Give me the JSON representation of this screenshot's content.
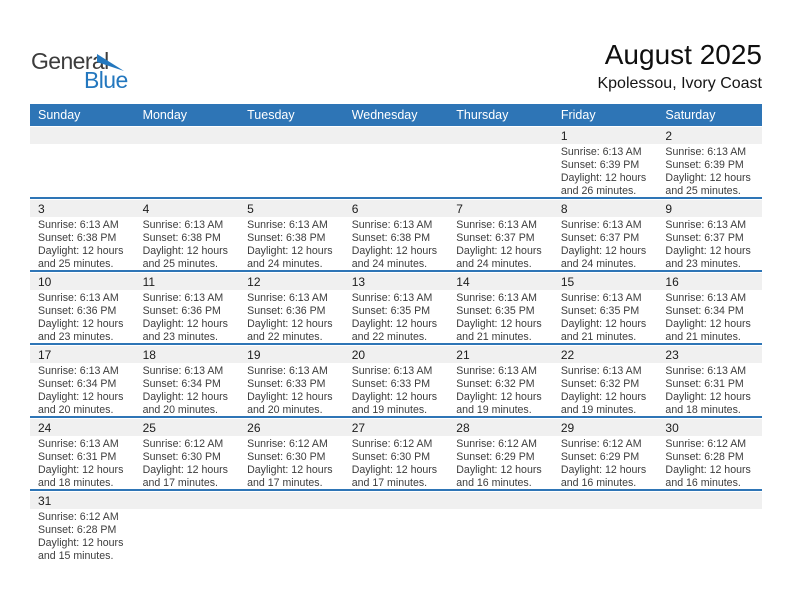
{
  "logo": {
    "general": "General",
    "blue": "Blue"
  },
  "header": {
    "title": "August 2025",
    "subtitle": "Kpolessou, Ivory Coast"
  },
  "weekdays": [
    "Sunday",
    "Monday",
    "Tuesday",
    "Wednesday",
    "Thursday",
    "Friday",
    "Saturday"
  ],
  "weeks": [
    [
      null,
      null,
      null,
      null,
      null,
      {
        "day": "1",
        "lines": [
          "Sunrise: 6:13 AM",
          "Sunset: 6:39 PM",
          "Daylight: 12 hours",
          "and 26 minutes."
        ]
      },
      {
        "day": "2",
        "lines": [
          "Sunrise: 6:13 AM",
          "Sunset: 6:39 PM",
          "Daylight: 12 hours",
          "and 25 minutes."
        ]
      }
    ],
    [
      {
        "day": "3",
        "lines": [
          "Sunrise: 6:13 AM",
          "Sunset: 6:38 PM",
          "Daylight: 12 hours",
          "and 25 minutes."
        ]
      },
      {
        "day": "4",
        "lines": [
          "Sunrise: 6:13 AM",
          "Sunset: 6:38 PM",
          "Daylight: 12 hours",
          "and 25 minutes."
        ]
      },
      {
        "day": "5",
        "lines": [
          "Sunrise: 6:13 AM",
          "Sunset: 6:38 PM",
          "Daylight: 12 hours",
          "and 24 minutes."
        ]
      },
      {
        "day": "6",
        "lines": [
          "Sunrise: 6:13 AM",
          "Sunset: 6:38 PM",
          "Daylight: 12 hours",
          "and 24 minutes."
        ]
      },
      {
        "day": "7",
        "lines": [
          "Sunrise: 6:13 AM",
          "Sunset: 6:37 PM",
          "Daylight: 12 hours",
          "and 24 minutes."
        ]
      },
      {
        "day": "8",
        "lines": [
          "Sunrise: 6:13 AM",
          "Sunset: 6:37 PM",
          "Daylight: 12 hours",
          "and 24 minutes."
        ]
      },
      {
        "day": "9",
        "lines": [
          "Sunrise: 6:13 AM",
          "Sunset: 6:37 PM",
          "Daylight: 12 hours",
          "and 23 minutes."
        ]
      }
    ],
    [
      {
        "day": "10",
        "lines": [
          "Sunrise: 6:13 AM",
          "Sunset: 6:36 PM",
          "Daylight: 12 hours",
          "and 23 minutes."
        ]
      },
      {
        "day": "11",
        "lines": [
          "Sunrise: 6:13 AM",
          "Sunset: 6:36 PM",
          "Daylight: 12 hours",
          "and 23 minutes."
        ]
      },
      {
        "day": "12",
        "lines": [
          "Sunrise: 6:13 AM",
          "Sunset: 6:36 PM",
          "Daylight: 12 hours",
          "and 22 minutes."
        ]
      },
      {
        "day": "13",
        "lines": [
          "Sunrise: 6:13 AM",
          "Sunset: 6:35 PM",
          "Daylight: 12 hours",
          "and 22 minutes."
        ]
      },
      {
        "day": "14",
        "lines": [
          "Sunrise: 6:13 AM",
          "Sunset: 6:35 PM",
          "Daylight: 12 hours",
          "and 21 minutes."
        ]
      },
      {
        "day": "15",
        "lines": [
          "Sunrise: 6:13 AM",
          "Sunset: 6:35 PM",
          "Daylight: 12 hours",
          "and 21 minutes."
        ]
      },
      {
        "day": "16",
        "lines": [
          "Sunrise: 6:13 AM",
          "Sunset: 6:34 PM",
          "Daylight: 12 hours",
          "and 21 minutes."
        ]
      }
    ],
    [
      {
        "day": "17",
        "lines": [
          "Sunrise: 6:13 AM",
          "Sunset: 6:34 PM",
          "Daylight: 12 hours",
          "and 20 minutes."
        ]
      },
      {
        "day": "18",
        "lines": [
          "Sunrise: 6:13 AM",
          "Sunset: 6:34 PM",
          "Daylight: 12 hours",
          "and 20 minutes."
        ]
      },
      {
        "day": "19",
        "lines": [
          "Sunrise: 6:13 AM",
          "Sunset: 6:33 PM",
          "Daylight: 12 hours",
          "and 20 minutes."
        ]
      },
      {
        "day": "20",
        "lines": [
          "Sunrise: 6:13 AM",
          "Sunset: 6:33 PM",
          "Daylight: 12 hours",
          "and 19 minutes."
        ]
      },
      {
        "day": "21",
        "lines": [
          "Sunrise: 6:13 AM",
          "Sunset: 6:32 PM",
          "Daylight: 12 hours",
          "and 19 minutes."
        ]
      },
      {
        "day": "22",
        "lines": [
          "Sunrise: 6:13 AM",
          "Sunset: 6:32 PM",
          "Daylight: 12 hours",
          "and 19 minutes."
        ]
      },
      {
        "day": "23",
        "lines": [
          "Sunrise: 6:13 AM",
          "Sunset: 6:31 PM",
          "Daylight: 12 hours",
          "and 18 minutes."
        ]
      }
    ],
    [
      {
        "day": "24",
        "lines": [
          "Sunrise: 6:13 AM",
          "Sunset: 6:31 PM",
          "Daylight: 12 hours",
          "and 18 minutes."
        ]
      },
      {
        "day": "25",
        "lines": [
          "Sunrise: 6:12 AM",
          "Sunset: 6:30 PM",
          "Daylight: 12 hours",
          "and 17 minutes."
        ]
      },
      {
        "day": "26",
        "lines": [
          "Sunrise: 6:12 AM",
          "Sunset: 6:30 PM",
          "Daylight: 12 hours",
          "and 17 minutes."
        ]
      },
      {
        "day": "27",
        "lines": [
          "Sunrise: 6:12 AM",
          "Sunset: 6:30 PM",
          "Daylight: 12 hours",
          "and 17 minutes."
        ]
      },
      {
        "day": "28",
        "lines": [
          "Sunrise: 6:12 AM",
          "Sunset: 6:29 PM",
          "Daylight: 12 hours",
          "and 16 minutes."
        ]
      },
      {
        "day": "29",
        "lines": [
          "Sunrise: 6:12 AM",
          "Sunset: 6:29 PM",
          "Daylight: 12 hours",
          "and 16 minutes."
        ]
      },
      {
        "day": "30",
        "lines": [
          "Sunrise: 6:12 AM",
          "Sunset: 6:28 PM",
          "Daylight: 12 hours",
          "and 16 minutes."
        ]
      }
    ],
    [
      {
        "day": "31",
        "lines": [
          "Sunrise: 6:12 AM",
          "Sunset: 6:28 PM",
          "Daylight: 12 hours",
          "and 15 minutes."
        ]
      },
      null,
      null,
      null,
      null,
      null,
      null
    ]
  ],
  "colors": {
    "header_blue": "#2E75B6",
    "separator_blue": "#2E75B6",
    "strip_gray": "#F0F0F0",
    "logo_blue": "#2377BE"
  }
}
